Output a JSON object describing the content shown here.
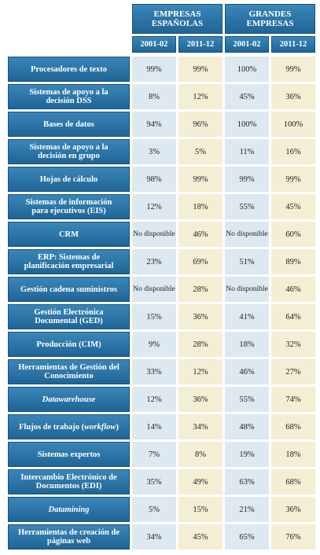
{
  "table": {
    "groups": [
      "EMPRESAS ESPAÑOLAS",
      "GRANDES EMPRESAS"
    ],
    "periods": [
      "2001-02",
      "2011-12",
      "2001-02",
      "2011-12"
    ],
    "rows": [
      {
        "label": "Procesadores de texto",
        "values": [
          "99%",
          "99%",
          "100%",
          "99%"
        ]
      },
      {
        "label": "Sistemas de apoyo a la decisión DSS",
        "values": [
          "8%",
          "12%",
          "45%",
          "36%"
        ]
      },
      {
        "label": "Bases de datos",
        "values": [
          "94%",
          "96%",
          "100%",
          "100%"
        ]
      },
      {
        "label": "Sistemas de apoyo a la decisión en grupo",
        "values": [
          "3%",
          "5%",
          "11%",
          "16%"
        ]
      },
      {
        "label": "Hojas de cálculo",
        "values": [
          "98%",
          "99%",
          "99%",
          "99%"
        ]
      },
      {
        "label": "Sistemas de información para ejecutivos (EIS)",
        "values": [
          "12%",
          "18%",
          "55%",
          "45%"
        ]
      },
      {
        "label": "CRM",
        "values": [
          "No disponible",
          "46%",
          "No disponible",
          "60%"
        ]
      },
      {
        "label": "ERP: Sistemas de planificación empresarial",
        "values": [
          "23%",
          "69%",
          "51%",
          "89%"
        ]
      },
      {
        "label": "Gestión cadena suministros",
        "values": [
          "No disponible",
          "28%",
          "No disponible",
          "46%"
        ]
      },
      {
        "label": "Gestión Electrónica Documental (GED)",
        "values": [
          "15%",
          "36%",
          "41%",
          "64%"
        ]
      },
      {
        "label": "Producción (CIM)",
        "values": [
          "9%",
          "28%",
          "18%",
          "32%"
        ]
      },
      {
        "label": "Herramientas de Gestión del Conocimiento",
        "values": [
          "33%",
          "12%",
          "46%",
          "27%"
        ]
      },
      {
        "label": "Datawarehouse",
        "values": [
          "12%",
          "36%",
          "55%",
          "74%"
        ]
      },
      {
        "label": [
          "Flujos de trabajo (",
          "workflow",
          ")"
        ],
        "values": [
          "14%",
          "34%",
          "48%",
          "68%"
        ]
      },
      {
        "label": "Sistemas expertos",
        "values": [
          "7%",
          "8%",
          "19%",
          "18%"
        ]
      },
      {
        "label": "Intercambio Electrónico de Documentos (EDI)",
        "values": [
          "35%",
          "49%",
          "63%",
          "68%"
        ]
      },
      {
        "label": "Datamining",
        "values": [
          "5%",
          "15%",
          "21%",
          "36%"
        ]
      },
      {
        "label": "Herramientas de creación de páginas web",
        "values": [
          "34%",
          "45%",
          "65%",
          "76%"
        ]
      }
    ]
  }
}
